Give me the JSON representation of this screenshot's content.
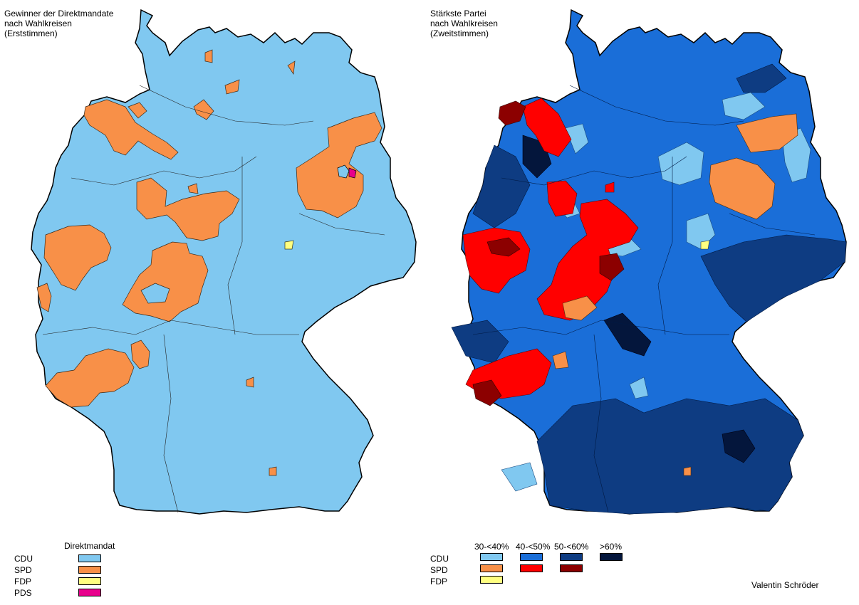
{
  "left_map": {
    "title": "Gewinner der Direktmandate\nnach Wahlkreisen\n(Erststimmen)",
    "legend_header": "Direktmandat",
    "legend": [
      {
        "party": "CDU",
        "color": "#80c8f0"
      },
      {
        "party": "SPD",
        "color": "#f89048"
      },
      {
        "party": "FDP",
        "color": "#ffff80"
      },
      {
        "party": "PDS",
        "color": "#e8008c"
      }
    ]
  },
  "right_map": {
    "title": "Stärkste Partei\nnach Wahlkreisen\n(Zweitstimmen)",
    "legend_columns": [
      "30-<40%",
      "40-<50%",
      "50-<60%",
      ">60%"
    ],
    "legend_rows": [
      {
        "party": "CDU",
        "colors": [
          "#80c8f0",
          "#1a6ed8",
          "#0e3c82",
          "#04163c"
        ]
      },
      {
        "party": "SPD",
        "colors": [
          "#f89048",
          "#ff0000",
          "#8c0000"
        ]
      },
      {
        "party": "FDP",
        "colors": [
          "#ffff80"
        ]
      }
    ]
  },
  "credit": "Valentin Schröder"
}
